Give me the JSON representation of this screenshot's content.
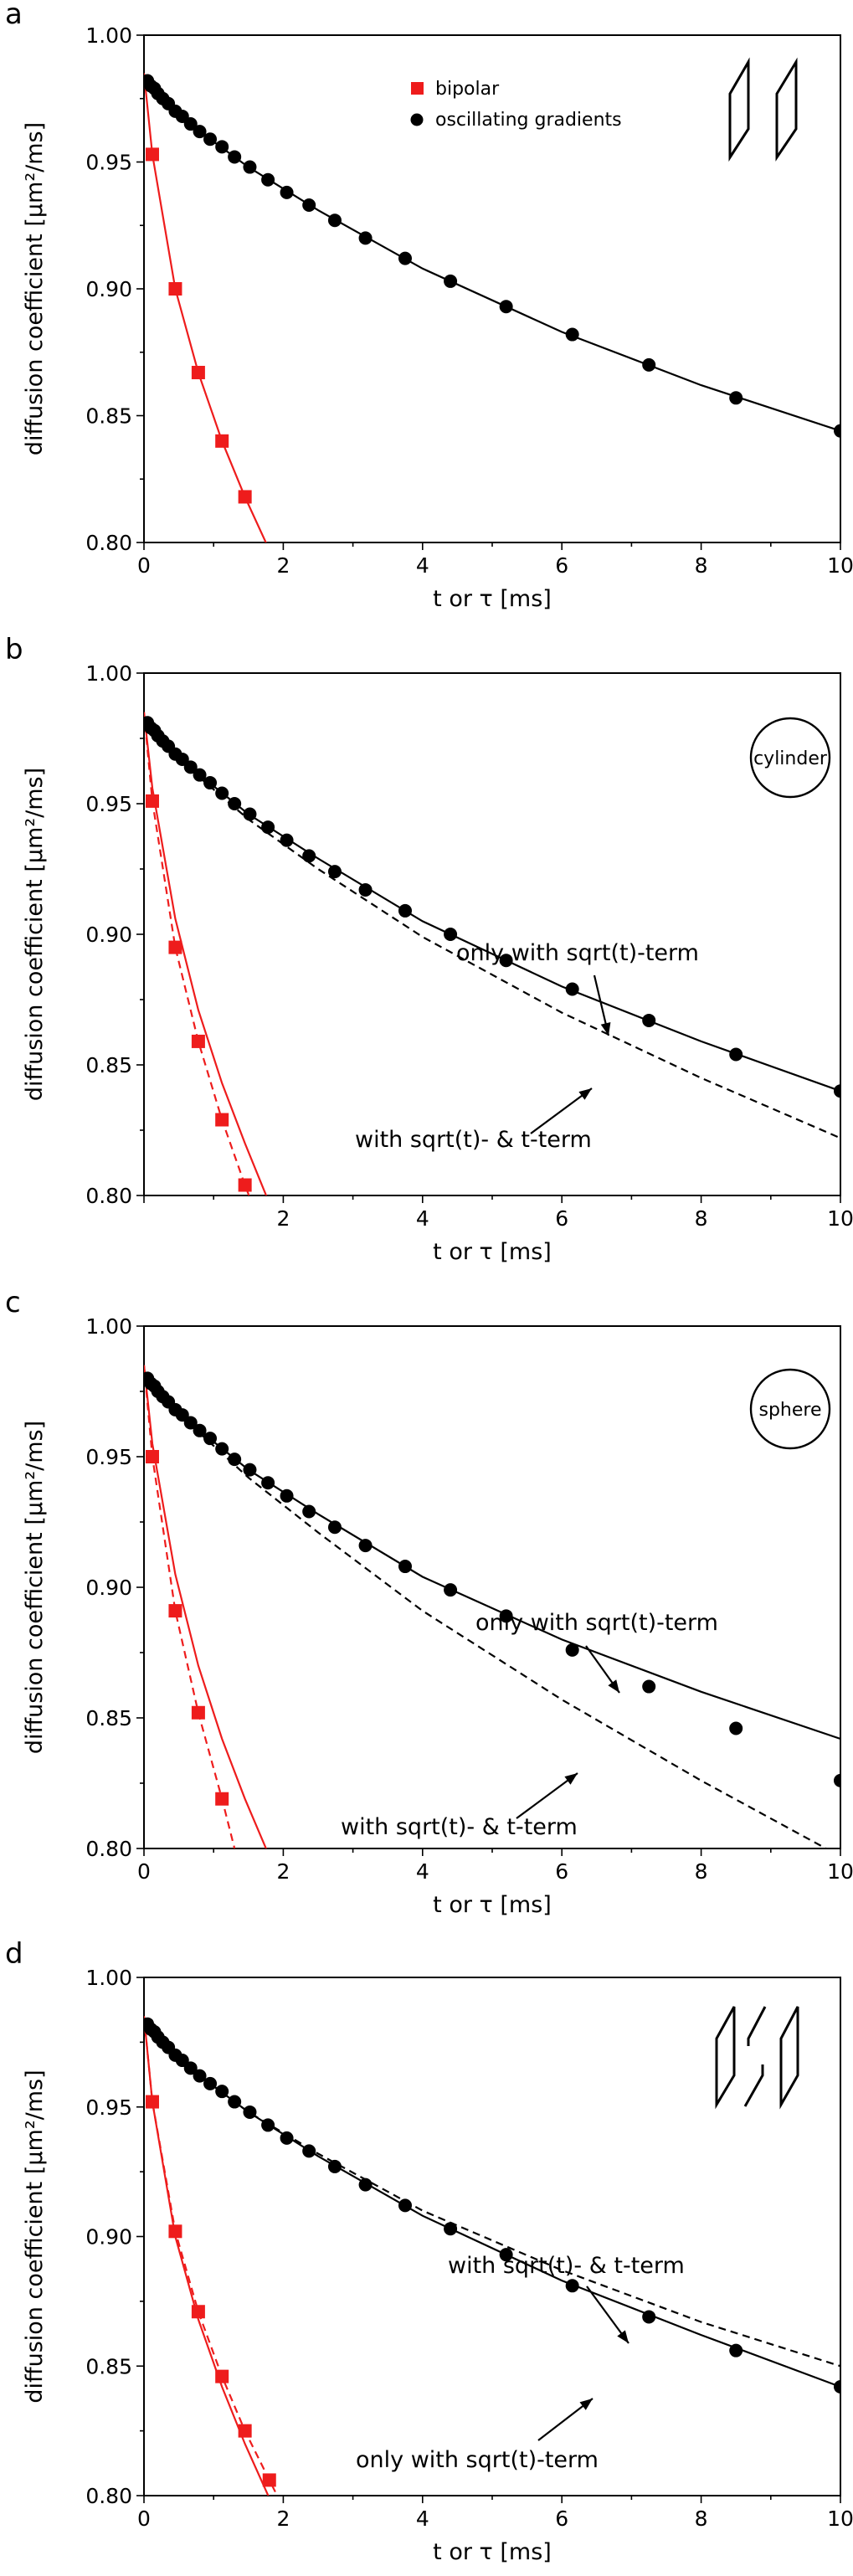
{
  "chart_data": [
    {
      "type": "scatter",
      "panel_label": "a",
      "xlabel": "t or τ [ms]",
      "ylabel": "diffusion coefficient [µm²/ms]",
      "xlim": [
        0,
        10
      ],
      "ylim": [
        0.8,
        1.0
      ],
      "x_ticks": [
        "0",
        "2",
        "4",
        "6",
        "8",
        "10"
      ],
      "y_ticks": [
        "0.80",
        "0.85",
        "0.90",
        "0.95",
        "1.00"
      ],
      "legend": {
        "placement": "top-center",
        "entries": [
          "bipolar",
          "oscillating gradients"
        ]
      },
      "inset": "two-parallelograms",
      "series": [
        {
          "name": "bipolar",
          "color": "#ee1c1c",
          "marker": "square",
          "x": [
            0.12,
            0.45,
            0.78,
            1.12,
            1.45
          ],
          "y": [
            0.953,
            0.9,
            0.867,
            0.84,
            0.818
          ],
          "fits": [
            {
              "style": "solid",
              "curve": [
                [
                  0.0,
                  0.985
                ],
                [
                  0.12,
                  0.953
                ],
                [
                  0.45,
                  0.9
                ],
                [
                  0.78,
                  0.867
                ],
                [
                  1.12,
                  0.84
                ],
                [
                  1.45,
                  0.818
                ],
                [
                  1.8,
                  0.797
                ]
              ]
            }
          ]
        },
        {
          "name": "oscillating gradients",
          "color": "#000000",
          "marker": "circle",
          "x": [
            0.05,
            0.1,
            0.15,
            0.2,
            0.27,
            0.35,
            0.45,
            0.55,
            0.67,
            0.8,
            0.95,
            1.12,
            1.3,
            1.52,
            1.78,
            2.05,
            2.37,
            2.74,
            3.18,
            3.75,
            4.4,
            5.2,
            6.15,
            7.25,
            8.5,
            10.0
          ],
          "y": [
            0.982,
            0.98,
            0.979,
            0.977,
            0.975,
            0.973,
            0.97,
            0.968,
            0.965,
            0.962,
            0.959,
            0.956,
            0.952,
            0.948,
            0.943,
            0.938,
            0.933,
            0.927,
            0.92,
            0.912,
            0.903,
            0.893,
            0.882,
            0.87,
            0.857,
            0.844
          ],
          "fits": [
            {
              "style": "solid",
              "curve": [
                [
                  0.05,
                  0.982
                ],
                [
                  0.3,
                  0.974
                ],
                [
                  0.8,
                  0.962
                ],
                [
                  1.5,
                  0.948
                ],
                [
                  2.5,
                  0.931
                ],
                [
                  4.0,
                  0.908
                ],
                [
                  6.0,
                  0.883
                ],
                [
                  8.0,
                  0.862
                ],
                [
                  10.0,
                  0.844
                ]
              ]
            }
          ]
        }
      ]
    },
    {
      "type": "scatter",
      "panel_label": "b",
      "xlabel": "t or τ [ms]",
      "ylabel": "diffusion coefficient [µm²/ms]",
      "xlim": [
        0,
        10
      ],
      "ylim": [
        0.8,
        1.0
      ],
      "x_ticks": [
        "2",
        "4",
        "6",
        "8",
        "10"
      ],
      "y_ticks": [
        "0.80",
        "0.85",
        "0.90",
        "0.95",
        "1.00"
      ],
      "shape_label": "cylinder",
      "annotations": [
        "only with sqrt(t)-term",
        "with sqrt(t)- & t-term"
      ],
      "series": [
        {
          "name": "bipolar",
          "color": "#ee1c1c",
          "marker": "square",
          "x": [
            0.12,
            0.45,
            0.78,
            1.12,
            1.45
          ],
          "y": [
            0.951,
            0.895,
            0.859,
            0.829,
            0.804
          ],
          "fits": [
            {
              "style": "solid",
              "curve": [
                [
                  0.0,
                  0.985
                ],
                [
                  0.12,
                  0.956
                ],
                [
                  0.45,
                  0.906
                ],
                [
                  0.78,
                  0.871
                ],
                [
                  1.12,
                  0.843
                ],
                [
                  1.45,
                  0.82
                ],
                [
                  1.8,
                  0.797
                ]
              ]
            },
            {
              "style": "dashed",
              "curve": [
                [
                  0.0,
                  0.985
                ],
                [
                  0.12,
                  0.951
                ],
                [
                  0.45,
                  0.895
                ],
                [
                  0.78,
                  0.859
                ],
                [
                  1.12,
                  0.829
                ],
                [
                  1.45,
                  0.804
                ],
                [
                  1.65,
                  0.79
                ]
              ]
            }
          ]
        },
        {
          "name": "oscillating gradients",
          "color": "#000000",
          "marker": "circle",
          "x": [
            0.05,
            0.1,
            0.15,
            0.2,
            0.27,
            0.35,
            0.45,
            0.55,
            0.67,
            0.8,
            0.95,
            1.12,
            1.3,
            1.52,
            1.78,
            2.05,
            2.37,
            2.74,
            3.18,
            3.75,
            4.4,
            5.2,
            6.15,
            7.25,
            8.5,
            10.0
          ],
          "y": [
            0.981,
            0.979,
            0.978,
            0.976,
            0.974,
            0.972,
            0.969,
            0.967,
            0.964,
            0.961,
            0.958,
            0.954,
            0.95,
            0.946,
            0.941,
            0.936,
            0.93,
            0.924,
            0.917,
            0.909,
            0.9,
            0.89,
            0.879,
            0.867,
            0.854,
            0.84
          ],
          "fits": [
            {
              "style": "solid",
              "curve": [
                [
                  0.05,
                  0.981
                ],
                [
                  0.3,
                  0.973
                ],
                [
                  0.8,
                  0.961
                ],
                [
                  1.5,
                  0.946
                ],
                [
                  2.5,
                  0.929
                ],
                [
                  4.0,
                  0.905
                ],
                [
                  6.0,
                  0.88
                ],
                [
                  8.0,
                  0.859
                ],
                [
                  10.0,
                  0.84
                ]
              ]
            },
            {
              "style": "dashed",
              "curve": [
                [
                  0.05,
                  0.981
                ],
                [
                  0.3,
                  0.973
                ],
                [
                  0.8,
                  0.96
                ],
                [
                  1.5,
                  0.944
                ],
                [
                  2.5,
                  0.925
                ],
                [
                  4.0,
                  0.899
                ],
                [
                  6.0,
                  0.87
                ],
                [
                  8.0,
                  0.845
                ],
                [
                  10.0,
                  0.822
                ]
              ]
            }
          ]
        }
      ]
    },
    {
      "type": "scatter",
      "panel_label": "c",
      "xlabel": "t or τ [ms]",
      "ylabel": "diffusion coefficient [µm²/ms]",
      "xlim": [
        0,
        10
      ],
      "ylim": [
        0.8,
        1.0
      ],
      "x_ticks": [
        "0",
        "2",
        "4",
        "6",
        "8",
        "10"
      ],
      "y_ticks": [
        "0.80",
        "0.85",
        "0.90",
        "0.95",
        "1.00"
      ],
      "shape_label": "sphere",
      "annotations": [
        "only with sqrt(t)-term",
        "with sqrt(t)- & t-term"
      ],
      "series": [
        {
          "name": "bipolar",
          "color": "#ee1c1c",
          "marker": "square",
          "x": [
            0.12,
            0.45,
            0.78,
            1.12
          ],
          "y": [
            0.95,
            0.891,
            0.852,
            0.819
          ],
          "fits": [
            {
              "style": "solid",
              "curve": [
                [
                  0.0,
                  0.985
                ],
                [
                  0.12,
                  0.955
                ],
                [
                  0.45,
                  0.905
                ],
                [
                  0.78,
                  0.87
                ],
                [
                  1.12,
                  0.842
                ],
                [
                  1.45,
                  0.819
                ],
                [
                  1.8,
                  0.797
                ]
              ]
            },
            {
              "style": "dashed",
              "curve": [
                [
                  0.0,
                  0.985
                ],
                [
                  0.12,
                  0.95
                ],
                [
                  0.45,
                  0.891
                ],
                [
                  0.78,
                  0.852
                ],
                [
                  1.12,
                  0.819
                ],
                [
                  1.3,
                  0.8
                ]
              ]
            }
          ]
        },
        {
          "name": "oscillating gradients",
          "color": "#000000",
          "marker": "circle",
          "x": [
            0.05,
            0.1,
            0.15,
            0.2,
            0.27,
            0.35,
            0.45,
            0.55,
            0.67,
            0.8,
            0.95,
            1.12,
            1.3,
            1.52,
            1.78,
            2.05,
            2.37,
            2.74,
            3.18,
            3.75,
            4.4,
            5.2,
            6.15,
            7.25,
            8.5,
            10.0
          ],
          "y": [
            0.98,
            0.978,
            0.977,
            0.975,
            0.973,
            0.971,
            0.968,
            0.966,
            0.963,
            0.96,
            0.957,
            0.953,
            0.949,
            0.945,
            0.94,
            0.935,
            0.929,
            0.923,
            0.916,
            0.908,
            0.899,
            0.889,
            0.876,
            0.862,
            0.846,
            0.826
          ],
          "fits": [
            {
              "style": "solid",
              "curve": [
                [
                  0.05,
                  0.98
                ],
                [
                  0.3,
                  0.972
                ],
                [
                  0.8,
                  0.96
                ],
                [
                  1.5,
                  0.945
                ],
                [
                  2.5,
                  0.928
                ],
                [
                  4.0,
                  0.904
                ],
                [
                  6.0,
                  0.88
                ],
                [
                  8.0,
                  0.86
                ],
                [
                  10.0,
                  0.842
                ]
              ]
            },
            {
              "style": "dashed",
              "curve": [
                [
                  0.05,
                  0.98
                ],
                [
                  0.3,
                  0.972
                ],
                [
                  0.8,
                  0.959
                ],
                [
                  1.5,
                  0.942
                ],
                [
                  2.5,
                  0.921
                ],
                [
                  4.0,
                  0.891
                ],
                [
                  6.0,
                  0.857
                ],
                [
                  8.0,
                  0.826
                ],
                [
                  10.0,
                  0.797
                ]
              ]
            }
          ]
        }
      ]
    },
    {
      "type": "scatter",
      "panel_label": "d",
      "xlabel": "t or τ [ms]",
      "ylabel": "diffusion coefficient [µm²/ms]",
      "xlim": [
        0,
        10
      ],
      "ylim": [
        0.8,
        1.0
      ],
      "x_ticks": [
        "0",
        "2",
        "4",
        "6",
        "8",
        "10"
      ],
      "y_ticks": [
        "0.80",
        "0.85",
        "0.90",
        "0.95",
        "1.00"
      ],
      "inset": "three-parallelograms",
      "annotations": [
        "with sqrt(t)- & t-term",
        "only with sqrt(t)-term"
      ],
      "series": [
        {
          "name": "bipolar",
          "color": "#ee1c1c",
          "marker": "square",
          "x": [
            0.12,
            0.45,
            0.78,
            1.12,
            1.45,
            1.8
          ],
          "y": [
            0.952,
            0.902,
            0.871,
            0.846,
            0.825,
            0.806
          ],
          "fits": [
            {
              "style": "solid",
              "curve": [
                [
                  0.0,
                  0.985
                ],
                [
                  0.12,
                  0.952
                ],
                [
                  0.45,
                  0.9
                ],
                [
                  0.78,
                  0.868
                ],
                [
                  1.12,
                  0.842
                ],
                [
                  1.45,
                  0.82
                ],
                [
                  1.8,
                  0.799
                ],
                [
                  1.85,
                  0.797
                ]
              ]
            },
            {
              "style": "dashed",
              "curve": [
                [
                  0.0,
                  0.985
                ],
                [
                  0.12,
                  0.952
                ],
                [
                  0.45,
                  0.902
                ],
                [
                  0.78,
                  0.871
                ],
                [
                  1.12,
                  0.846
                ],
                [
                  1.45,
                  0.825
                ],
                [
                  1.8,
                  0.806
                ],
                [
                  1.95,
                  0.798
                ]
              ]
            }
          ]
        },
        {
          "name": "oscillating gradients",
          "color": "#000000",
          "marker": "circle",
          "x": [
            0.05,
            0.1,
            0.15,
            0.2,
            0.27,
            0.35,
            0.45,
            0.55,
            0.67,
            0.8,
            0.95,
            1.12,
            1.3,
            1.52,
            1.78,
            2.05,
            2.37,
            2.74,
            3.18,
            3.75,
            4.4,
            5.2,
            6.15,
            7.25,
            8.5,
            10.0
          ],
          "y": [
            0.982,
            0.98,
            0.979,
            0.977,
            0.975,
            0.973,
            0.97,
            0.968,
            0.965,
            0.962,
            0.959,
            0.956,
            0.952,
            0.948,
            0.943,
            0.938,
            0.933,
            0.927,
            0.92,
            0.912,
            0.903,
            0.893,
            0.881,
            0.869,
            0.856,
            0.842
          ],
          "fits": [
            {
              "style": "solid",
              "curve": [
                [
                  0.05,
                  0.982
                ],
                [
                  0.3,
                  0.974
                ],
                [
                  0.8,
                  0.962
                ],
                [
                  1.5,
                  0.948
                ],
                [
                  2.5,
                  0.931
                ],
                [
                  4.0,
                  0.908
                ],
                [
                  6.0,
                  0.883
                ],
                [
                  8.0,
                  0.862
                ],
                [
                  10.0,
                  0.842
                ]
              ]
            },
            {
              "style": "dashed",
              "curve": [
                [
                  0.05,
                  0.982
                ],
                [
                  0.3,
                  0.974
                ],
                [
                  0.8,
                  0.962
                ],
                [
                  1.5,
                  0.948
                ],
                [
                  2.5,
                  0.932
                ],
                [
                  4.0,
                  0.91
                ],
                [
                  6.0,
                  0.887
                ],
                [
                  8.0,
                  0.867
                ],
                [
                  10.0,
                  0.85
                ]
              ]
            }
          ]
        }
      ]
    }
  ]
}
